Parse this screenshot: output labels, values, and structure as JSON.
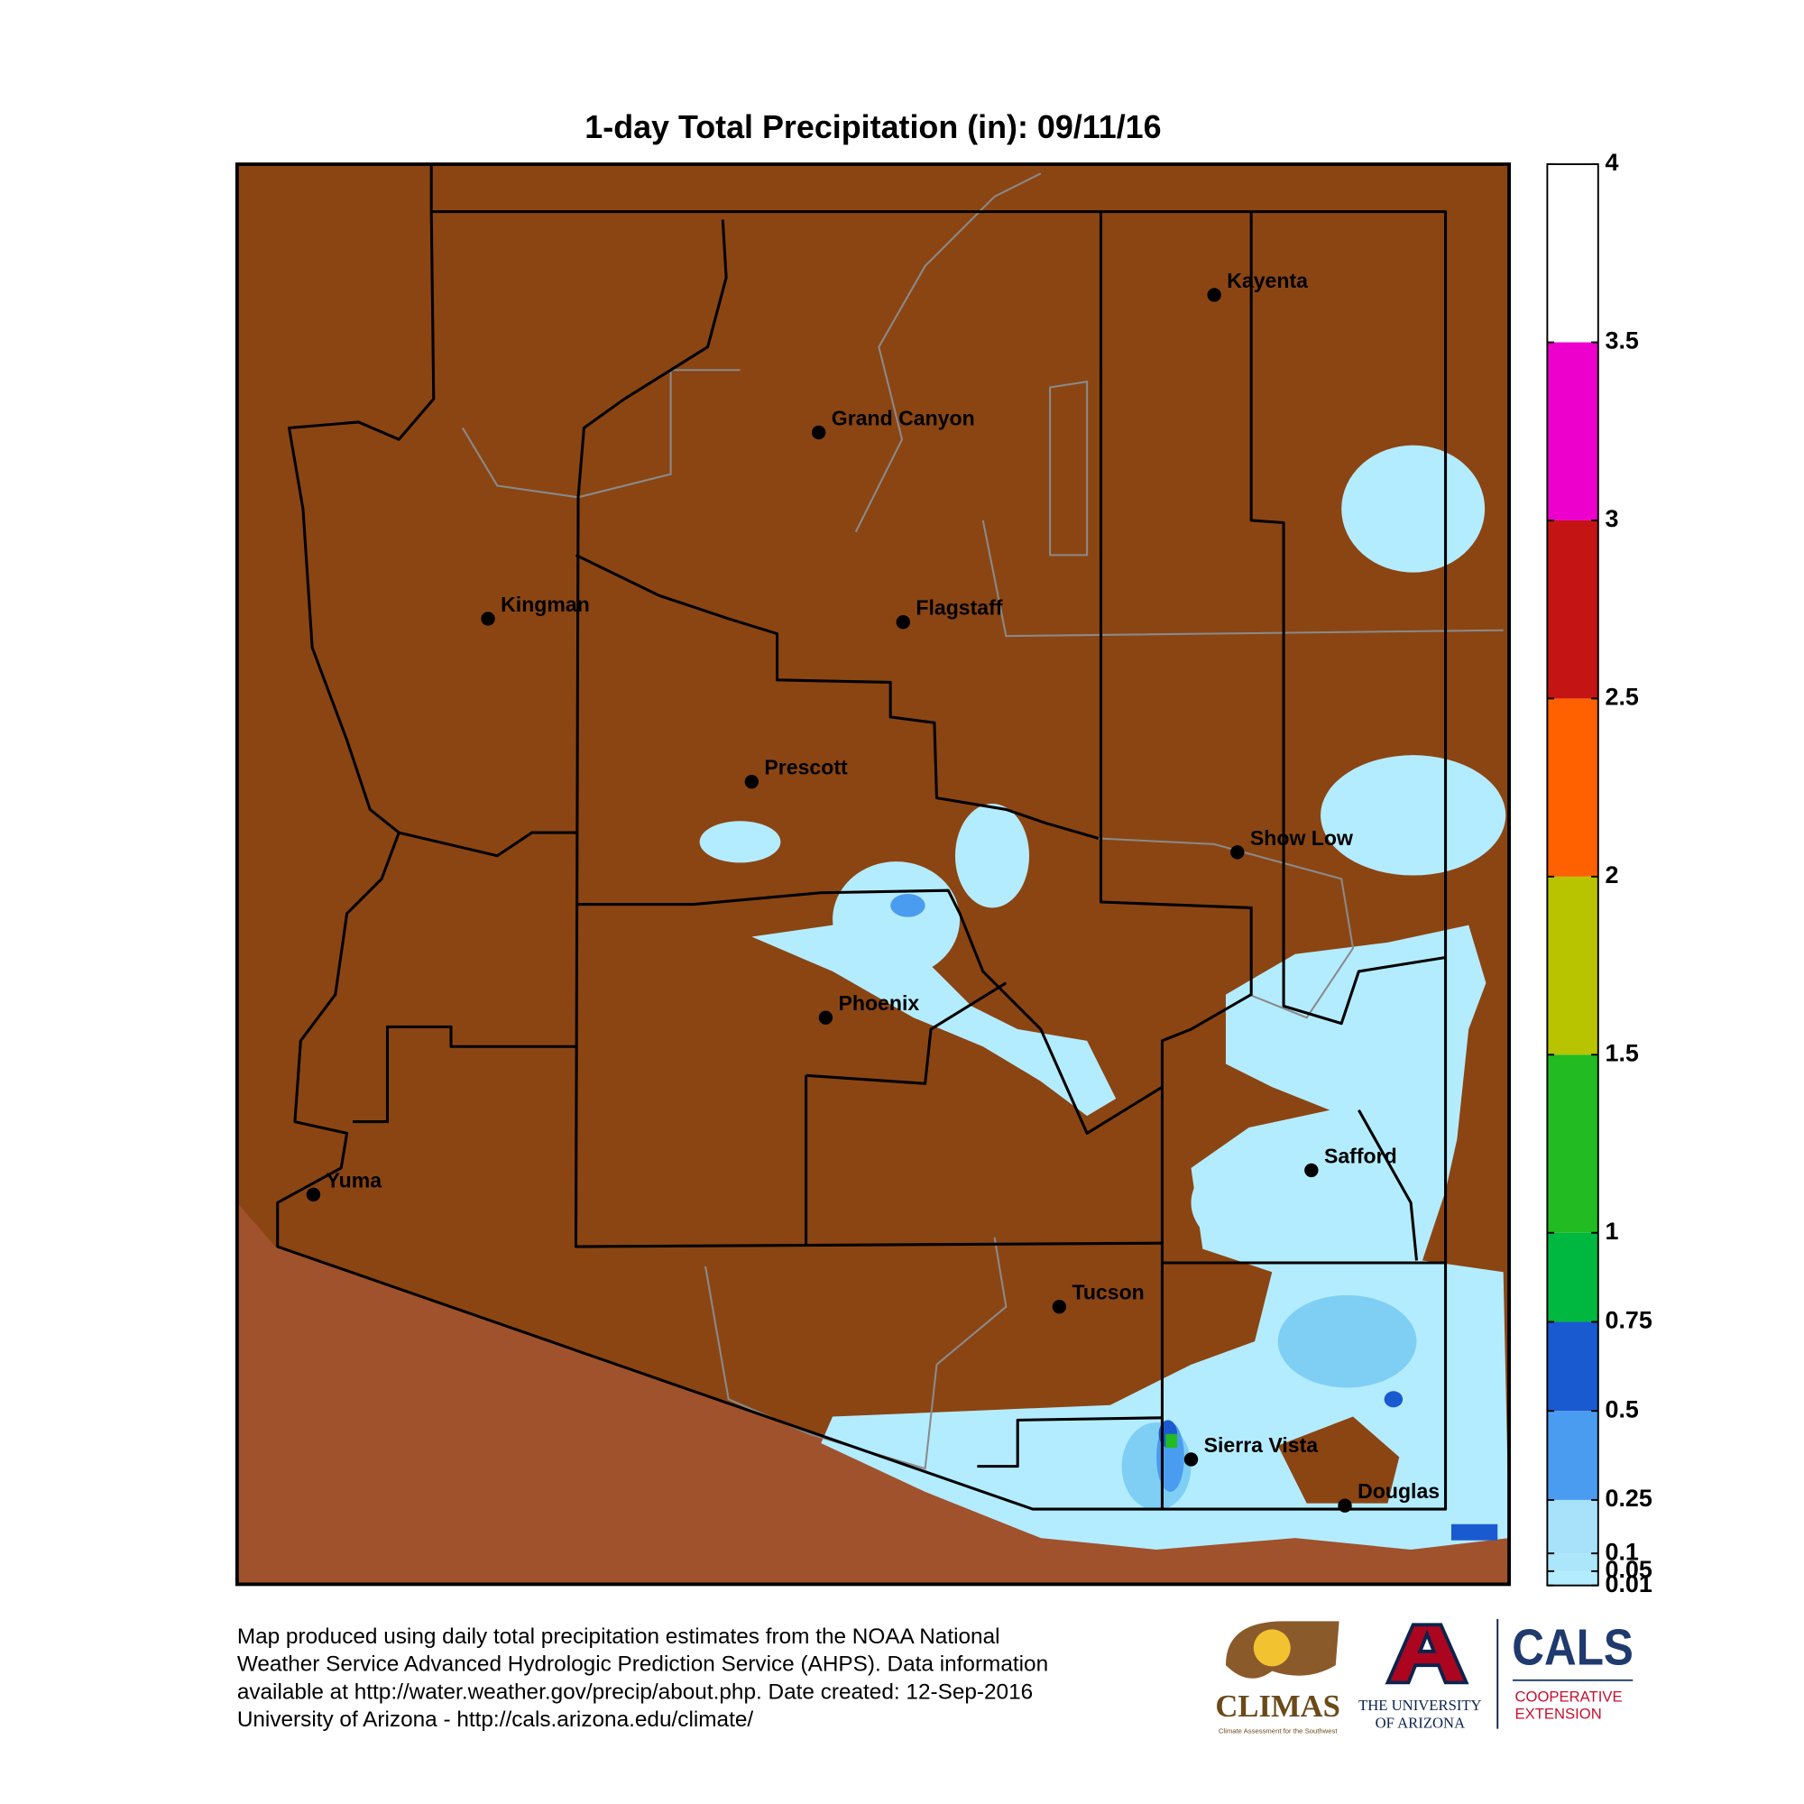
{
  "title": "1-day Total Precipitation (in): 09/11/16",
  "legend": {
    "breaks": [
      0.01,
      0.05,
      0.1,
      0.25,
      0.5,
      0.75,
      1,
      1.5,
      2,
      2.5,
      3,
      3.5,
      4
    ],
    "colors": [
      "#b4ecff",
      "#acE6fb",
      "#a8e2fa",
      "#4a9cf0",
      "#1a5ad0",
      "#00b840",
      "#22bb22",
      "#b8c400",
      "#ff6000",
      "#c41414",
      "#ee00cc",
      "#ffffff"
    ],
    "range": [
      0.01,
      4
    ]
  },
  "cities": [
    "Kayenta",
    "Grand Canyon",
    "Kingman",
    "Flagstaff",
    "Prescott",
    "Show Low",
    "Phoenix",
    "Safford",
    "Yuma",
    "Tucson",
    "Sierra Vista",
    "Douglas"
  ],
  "footer": [
    "Map produced using daily total precipitation estimates from the NOAA National",
    "Weather Service Advanced Hydrologic Prediction Service (AHPS). Data information",
    "available at http://water.weather.gov/precip/about.php. Date created: 12-Sep-2016",
    "University of Arizona - http://cals.arizona.edu/climate/"
  ],
  "logos": {
    "climas": "CLIMAS",
    "climas_tagline": "Climate Assessment for the Southwest",
    "university": [
      "THE UNIVERSITY",
      "OF ARIZONA"
    ],
    "cals": "CALS",
    "cals_unit": [
      "COOPERATIVE",
      "EXTENSION"
    ]
  }
}
